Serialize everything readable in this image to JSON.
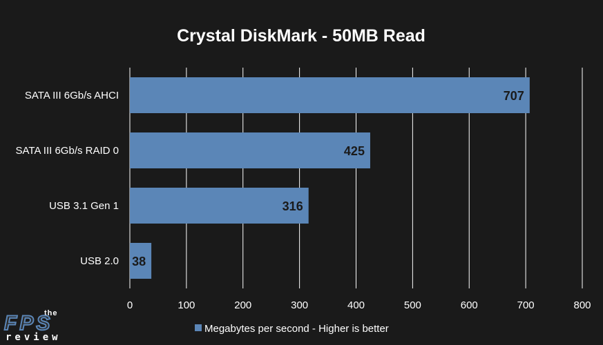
{
  "chart_data": {
    "type": "bar",
    "orientation": "horizontal",
    "title": "Crystal DiskMark - 50MB Read",
    "categories": [
      "SATA III 6Gb/s AHCI",
      "SATA III 6Gb/s RAID 0",
      "USB 3.1 Gen 1",
      "USB 2.0"
    ],
    "series": [
      {
        "name": "Megabytes per second - Higher is better",
        "values": [
          707,
          425,
          316,
          38
        ]
      }
    ],
    "xlim": [
      0,
      800
    ],
    "xticks": [
      0,
      100,
      200,
      300,
      400,
      500,
      600,
      700,
      800
    ],
    "grid": true,
    "legend": "bottom",
    "data_labels": true
  },
  "colors": {
    "background": "#1a1a1a",
    "bar": "#5b86b7",
    "grid": "#ffffff",
    "text": "#ffffff",
    "label": "#1a1a1a"
  },
  "logo": {
    "the": "the",
    "fps": "FPS",
    "review": "review"
  }
}
